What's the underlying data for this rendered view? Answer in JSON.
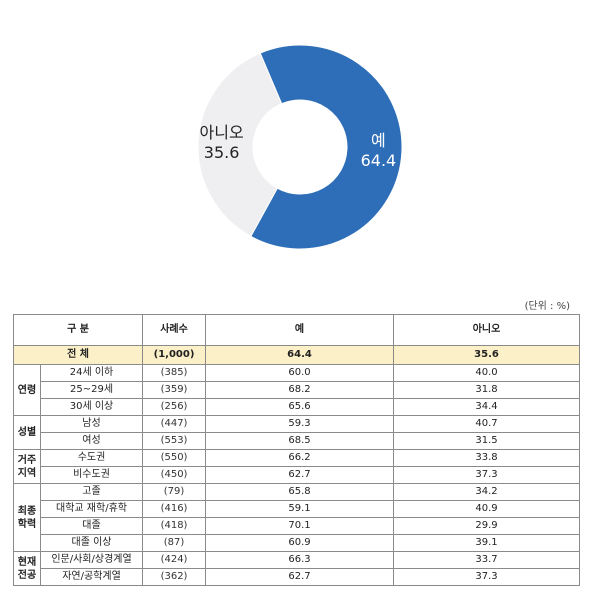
{
  "chart_data": {
    "type": "pie",
    "donut": true,
    "slices": [
      {
        "label": "예",
        "value": 64.4,
        "color": "#2e6eb8",
        "text_color": "#ffffff"
      },
      {
        "label": "아니오",
        "value": 35.6,
        "color": "#efeff1",
        "text_color": "#222222"
      }
    ]
  },
  "table": {
    "unit": "(단위 : %)",
    "headers": {
      "category": "구 분",
      "sample": "사례수",
      "yes": "예",
      "no": "아니오"
    },
    "total": {
      "label": "전 체",
      "n": "(1,000)",
      "yes": "64.4",
      "no": "35.6"
    },
    "groups": [
      {
        "name": "연령",
        "rows": [
          {
            "label": "24세 이하",
            "n": "(385)",
            "yes": "60.0",
            "no": "40.0"
          },
          {
            "label": "25~29세",
            "n": "(359)",
            "yes": "68.2",
            "no": "31.8"
          },
          {
            "label": "30세 이상",
            "n": "(256)",
            "yes": "65.6",
            "no": "34.4"
          }
        ]
      },
      {
        "name": "성별",
        "rows": [
          {
            "label": "남성",
            "n": "(447)",
            "yes": "59.3",
            "no": "40.7"
          },
          {
            "label": "여성",
            "n": "(553)",
            "yes": "68.5",
            "no": "31.5"
          }
        ]
      },
      {
        "name": "거주 지역",
        "rows": [
          {
            "label": "수도권",
            "n": "(550)",
            "yes": "66.2",
            "no": "33.8"
          },
          {
            "label": "비수도권",
            "n": "(450)",
            "yes": "62.7",
            "no": "37.3"
          }
        ]
      },
      {
        "name": "최종 학력",
        "rows": [
          {
            "label": "고졸",
            "n": "(79)",
            "yes": "65.8",
            "no": "34.2"
          },
          {
            "label": "대학교 재학/휴학",
            "n": "(416)",
            "yes": "59.1",
            "no": "40.9"
          },
          {
            "label": "대졸",
            "n": "(418)",
            "yes": "70.1",
            "no": "29.9"
          },
          {
            "label": "대졸 이상",
            "n": "(87)",
            "yes": "60.9",
            "no": "39.1"
          }
        ]
      },
      {
        "name": "현재 전공",
        "rows": [
          {
            "label": "인문/사회/상경계열",
            "n": "(424)",
            "yes": "66.3",
            "no": "33.7"
          },
          {
            "label": "자연/공학계열",
            "n": "(362)",
            "yes": "62.7",
            "no": "37.3"
          }
        ]
      }
    ]
  }
}
